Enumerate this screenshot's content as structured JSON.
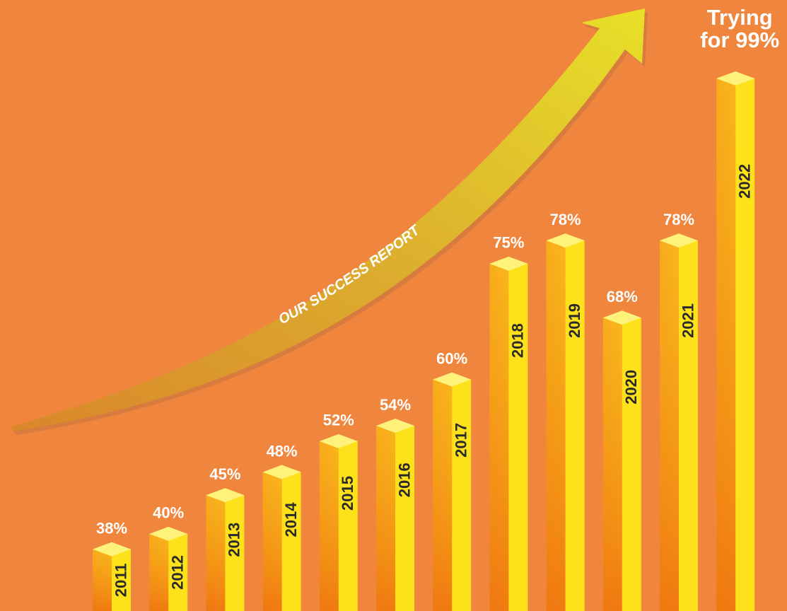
{
  "chart_data": {
    "type": "bar3d",
    "title": "OUR SUCCESS REPORT",
    "categories": [
      "2011",
      "2012",
      "2013",
      "2014",
      "2015",
      "2016",
      "2017",
      "2018",
      "2019",
      "2020",
      "2021",
      "2022"
    ],
    "values": [
      38,
      40,
      45,
      48,
      52,
      54,
      60,
      75,
      78,
      68,
      78,
      99
    ],
    "value_labels": [
      "38%",
      "40%",
      "45%",
      "48%",
      "52%",
      "54%",
      "60%",
      "75%",
      "78%",
      "68%",
      "78%",
      [
        "Trying",
        "for 99%"
      ]
    ],
    "ylim": [
      30,
      100
    ]
  }
}
